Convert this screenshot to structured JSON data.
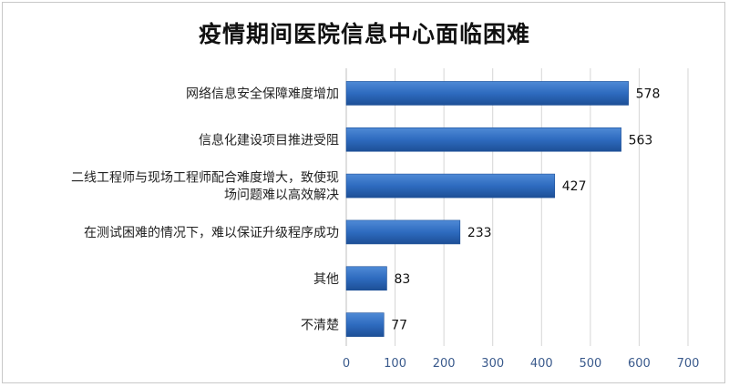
{
  "chart_data": {
    "type": "bar",
    "orientation": "horizontal",
    "title": "疫情期间医院信息中心面临困难",
    "categories": [
      [
        "网络信息安全保障难度增加"
      ],
      [
        "信息化建设项目推进受阻"
      ],
      [
        "二线工程师与现场工程师配合难度增大，致使现",
        "场问题难以高效解决"
      ],
      [
        "在测试困难的情况下，难以保证升级程序成功"
      ],
      [
        "其他"
      ],
      [
        "不清楚"
      ]
    ],
    "values": [
      578,
      563,
      427,
      233,
      83,
      77
    ],
    "xlim": [
      0,
      700
    ],
    "xticks": [
      0,
      100,
      200,
      300,
      400,
      500,
      600,
      700
    ],
    "grid": true,
    "legend": "none",
    "bar_color": "#2e6bbf",
    "bar_color_light": "#4f8ad6",
    "bar_color_dark": "#1d4f96"
  }
}
